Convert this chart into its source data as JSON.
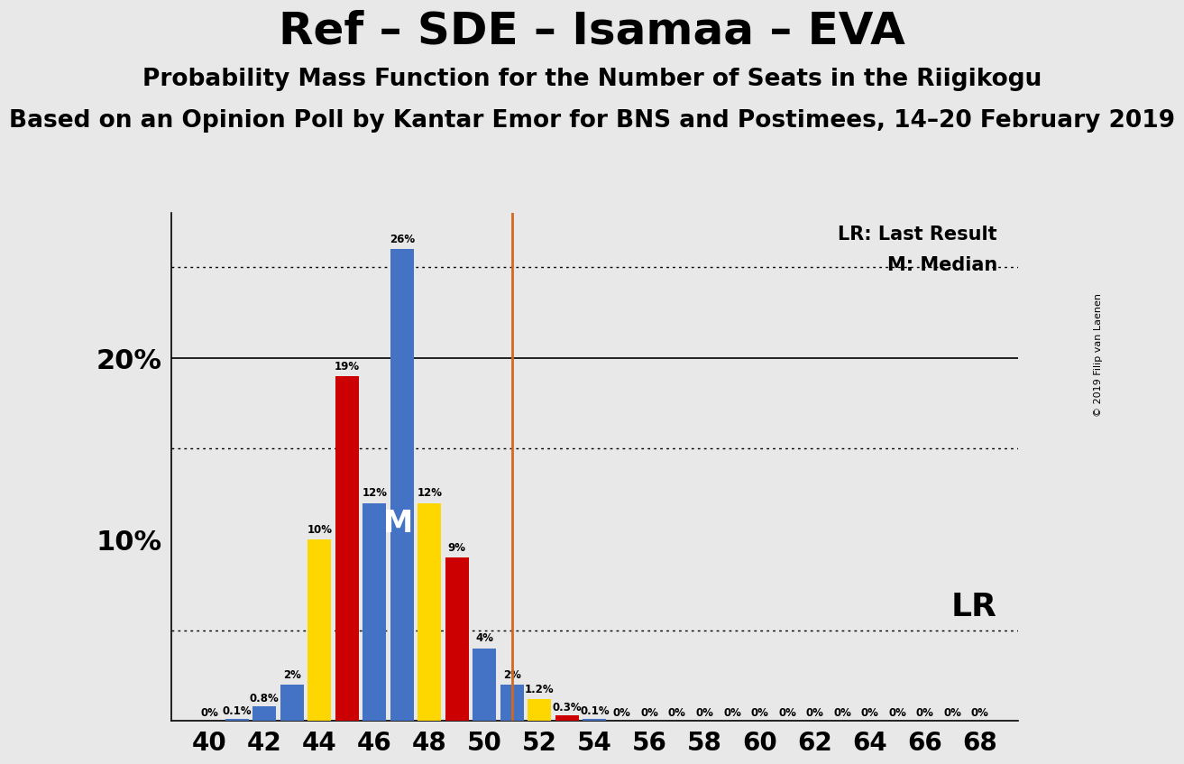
{
  "title": "Ref – SDE – Isamaa – EVA",
  "subtitle1": "Probability Mass Function for the Number of Seats in the Riigikogu",
  "subtitle2": "Based on an Opinion Poll by Kantar Emor for BNS and Postimees, 14–20 February 2019",
  "copyright": "© 2019 Filip van Laenen",
  "x_min": 40,
  "x_max": 68,
  "y_max": 28,
  "lr_line": 51,
  "median_seat": 47,
  "lr_label": "LR",
  "lr_legend": "LR: Last Result",
  "m_legend": "M: Median",
  "background_color": "#e8e8e8",
  "bar_data": [
    {
      "seat": 40,
      "color": "#4472c4",
      "pct": 0.0
    },
    {
      "seat": 41,
      "color": "#4472c4",
      "pct": 0.1
    },
    {
      "seat": 42,
      "color": "#4472c4",
      "pct": 0.8
    },
    {
      "seat": 43,
      "color": "#4472c4",
      "pct": 2.0
    },
    {
      "seat": 44,
      "color": "#ffd700",
      "pct": 10.0
    },
    {
      "seat": 45,
      "color": "#cc0000",
      "pct": 19.0
    },
    {
      "seat": 46,
      "color": "#4472c4",
      "pct": 12.0
    },
    {
      "seat": 47,
      "color": "#4472c4",
      "pct": 26.0
    },
    {
      "seat": 48,
      "color": "#ffd700",
      "pct": 12.0
    },
    {
      "seat": 49,
      "color": "#cc0000",
      "pct": 9.0
    },
    {
      "seat": 50,
      "color": "#4472c4",
      "pct": 4.0
    },
    {
      "seat": 51,
      "color": "#4472c4",
      "pct": 2.0
    },
    {
      "seat": 52,
      "color": "#ffd700",
      "pct": 1.2
    },
    {
      "seat": 53,
      "color": "#cc0000",
      "pct": 0.3
    },
    {
      "seat": 54,
      "color": "#4472c4",
      "pct": 0.1
    },
    {
      "seat": 55,
      "color": "#4472c4",
      "pct": 0.0
    },
    {
      "seat": 56,
      "color": "#4472c4",
      "pct": 0.0
    },
    {
      "seat": 57,
      "color": "#4472c4",
      "pct": 0.0
    },
    {
      "seat": 58,
      "color": "#4472c4",
      "pct": 0.0
    },
    {
      "seat": 59,
      "color": "#4472c4",
      "pct": 0.0
    },
    {
      "seat": 60,
      "color": "#4472c4",
      "pct": 0.0
    },
    {
      "seat": 61,
      "color": "#4472c4",
      "pct": 0.0
    },
    {
      "seat": 62,
      "color": "#4472c4",
      "pct": 0.0
    },
    {
      "seat": 63,
      "color": "#4472c4",
      "pct": 0.0
    },
    {
      "seat": 64,
      "color": "#4472c4",
      "pct": 0.0
    },
    {
      "seat": 65,
      "color": "#4472c4",
      "pct": 0.0
    },
    {
      "seat": 66,
      "color": "#4472c4",
      "pct": 0.0
    },
    {
      "seat": 67,
      "color": "#4472c4",
      "pct": 0.0
    },
    {
      "seat": 68,
      "color": "#4472c4",
      "pct": 0.0
    }
  ],
  "dotted_gridlines": [
    5,
    15,
    25
  ],
  "solid_gridline": 20,
  "title_fontsize": 36,
  "subtitle1_fontsize": 19,
  "subtitle2_fontsize": 19
}
